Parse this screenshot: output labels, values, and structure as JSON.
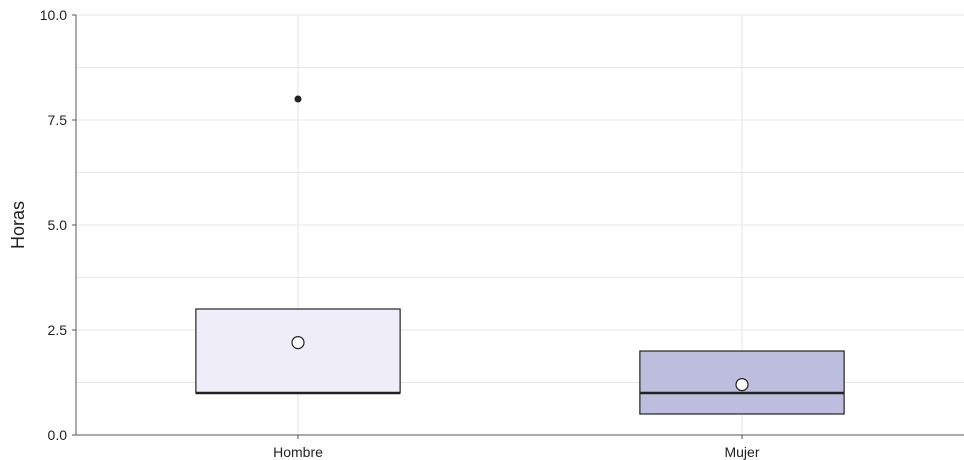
{
  "chart_data": {
    "type": "boxplot",
    "title": "",
    "xlabel": "",
    "ylabel": "Horas",
    "ylim": [
      0,
      10
    ],
    "y_ticks": [
      "0.0",
      "2.5",
      "5.0",
      "7.5",
      "10.0"
    ],
    "grid": true,
    "categories": [
      "Hombre",
      "Mujer"
    ],
    "boxes": [
      {
        "category": "Hombre",
        "q1": 1,
        "median": 1,
        "q3": 3,
        "whisker_low": 1,
        "whisker_high": 3,
        "mean": 2.2,
        "outliers": [
          8
        ],
        "fill": "#efeef8"
      },
      {
        "category": "Mujer",
        "q1": 0.5,
        "median": 1,
        "q3": 2,
        "whisker_low": 0.5,
        "whisker_high": 2,
        "mean": 1.2,
        "outliers": [],
        "fill": "#bdbddd"
      }
    ],
    "colors": {
      "grid": "#e6e6e6",
      "axis": "#555555",
      "box_stroke": "#222222",
      "median": "#222222"
    }
  }
}
